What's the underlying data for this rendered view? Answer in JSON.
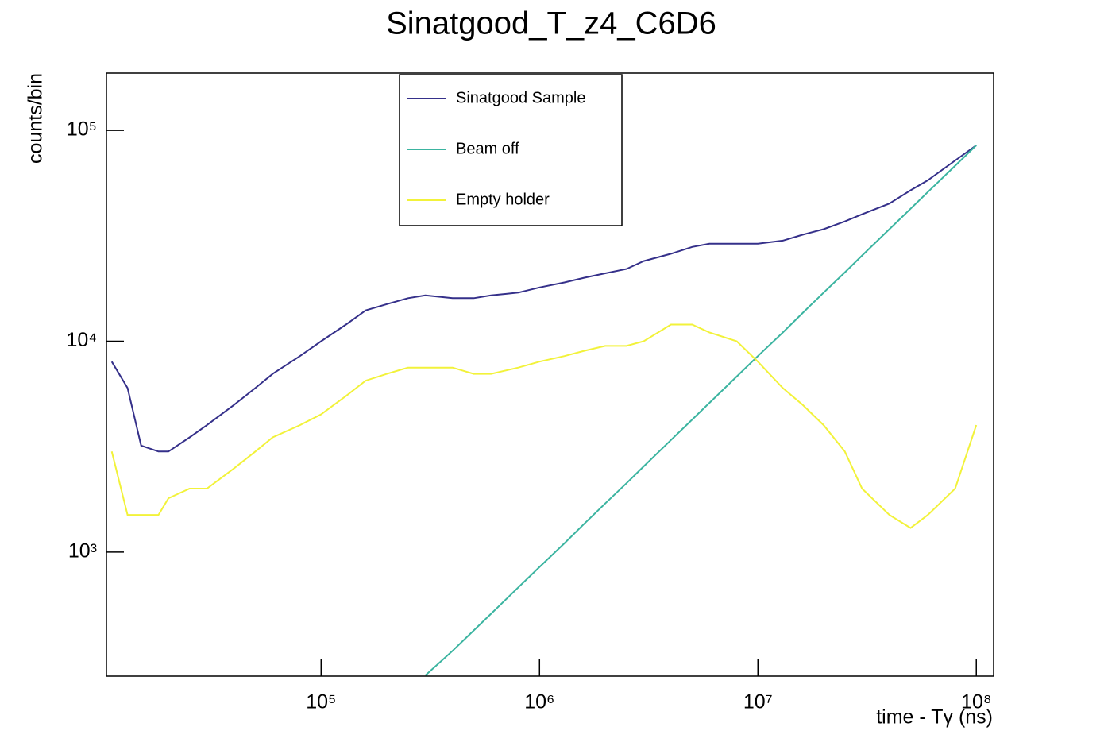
{
  "chart_data": {
    "type": "line",
    "title": "Sinatgood_T_z4_C6D6",
    "x_label": "time - Tγ (ns)",
    "y_label": "counts/bin",
    "xlog": true,
    "ylog": true,
    "grid": false,
    "legend_position": "top-center",
    "xlim": [
      10400,
      120000000
    ],
    "ylim": [
      258,
      187000
    ],
    "xticks": [
      {
        "value": 100000,
        "label": "10⁵"
      },
      {
        "value": 1000000,
        "label": "10⁶"
      },
      {
        "value": 10000000,
        "label": "10⁷"
      },
      {
        "value": 100000000,
        "label": "10⁸"
      }
    ],
    "yticks": [
      {
        "value": 1000,
        "label": "10³"
      },
      {
        "value": 10000,
        "label": "10⁴"
      },
      {
        "value": 100000,
        "label": "10⁵"
      }
    ],
    "x": [
      11000,
      13000,
      15000,
      18000,
      20000,
      25000,
      30000,
      40000,
      50000,
      60000,
      80000,
      100000,
      130000,
      160000,
      200000,
      250000,
      300000,
      400000,
      500000,
      600000,
      800000,
      1000000,
      1300000,
      1600000,
      2000000,
      2500000,
      3000000,
      4000000,
      5000000,
      6000000,
      8000000,
      10000000,
      13000000,
      16000000,
      20000000,
      25000000,
      30000000,
      40000000,
      50000000,
      60000000,
      80000000,
      100000000
    ],
    "series": [
      {
        "name": "Sinatgood Sample",
        "color": "#35308a",
        "values": [
          8000,
          6000,
          3200,
          3000,
          3000,
          3500,
          4000,
          5000,
          6000,
          7000,
          8500,
          10000,
          12000,
          14000,
          15000,
          16000,
          16500,
          16000,
          16000,
          16500,
          17000,
          18000,
          19000,
          20000,
          21000,
          22000,
          24000,
          26000,
          28000,
          29000,
          29000,
          29000,
          30000,
          32000,
          34000,
          37000,
          40000,
          45000,
          52000,
          58000,
          72000,
          85000
        ]
      },
      {
        "name": "Beam off",
        "color": "#3bb4a0",
        "values": [
          null,
          null,
          null,
          null,
          null,
          null,
          null,
          null,
          null,
          null,
          null,
          null,
          null,
          null,
          null,
          null,
          260,
          340,
          425,
          510,
          680,
          850,
          1100,
          1360,
          1700,
          2120,
          2550,
          3400,
          4250,
          5100,
          6800,
          8500,
          11000,
          13600,
          17000,
          21200,
          25500,
          34000,
          42500,
          51000,
          68000,
          85000
        ]
      },
      {
        "name": "Empty holder",
        "color": "#f2f23a",
        "values": [
          3000,
          1500,
          1500,
          1500,
          1800,
          2000,
          2000,
          2500,
          3000,
          3500,
          4000,
          4500,
          5500,
          6500,
          7000,
          7500,
          7500,
          7500,
          7000,
          7000,
          7500,
          8000,
          8500,
          9000,
          9500,
          9500,
          10000,
          12000,
          12000,
          11000,
          10000,
          8000,
          6000,
          5000,
          4000,
          3000,
          2000,
          1500,
          1300,
          1500,
          2000,
          4000
        ]
      }
    ]
  }
}
